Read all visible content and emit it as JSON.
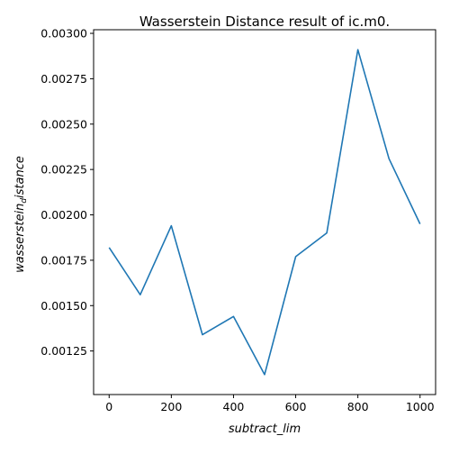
{
  "chart_data": {
    "type": "line",
    "title": "Wasserstein Distance result of ic.m0.",
    "xlabel": "subtract_lim",
    "ylabel_main": "wasserstein",
    "ylabel_sub": "d",
    "ylabel_tail": "istance",
    "x": [
      0,
      100,
      200,
      300,
      400,
      500,
      600,
      700,
      800,
      900,
      1000
    ],
    "series": [
      {
        "values": [
          0.00182,
          0.00156,
          0.00194,
          0.00134,
          0.00144,
          0.00112,
          0.00177,
          0.0019,
          0.00291,
          0.00231,
          0.00195
        ]
      }
    ],
    "xlim": [
      -50,
      1050
    ],
    "ylim": [
      0.00101,
      0.00302
    ],
    "xticks": [
      0,
      200,
      400,
      600,
      800,
      1000
    ],
    "xtick_labels": [
      "0",
      "200",
      "400",
      "600",
      "800",
      "1000"
    ],
    "yticks": [
      0.00125,
      0.0015,
      0.00175,
      0.002,
      0.00225,
      0.0025,
      0.00275,
      0.003
    ],
    "ytick_labels": [
      "0.00125",
      "0.00150",
      "0.00175",
      "0.00200",
      "0.00225",
      "0.00250",
      "0.00275",
      "0.00300"
    ],
    "line_color": "#1f77b4",
    "grid": false,
    "legend": "none"
  }
}
